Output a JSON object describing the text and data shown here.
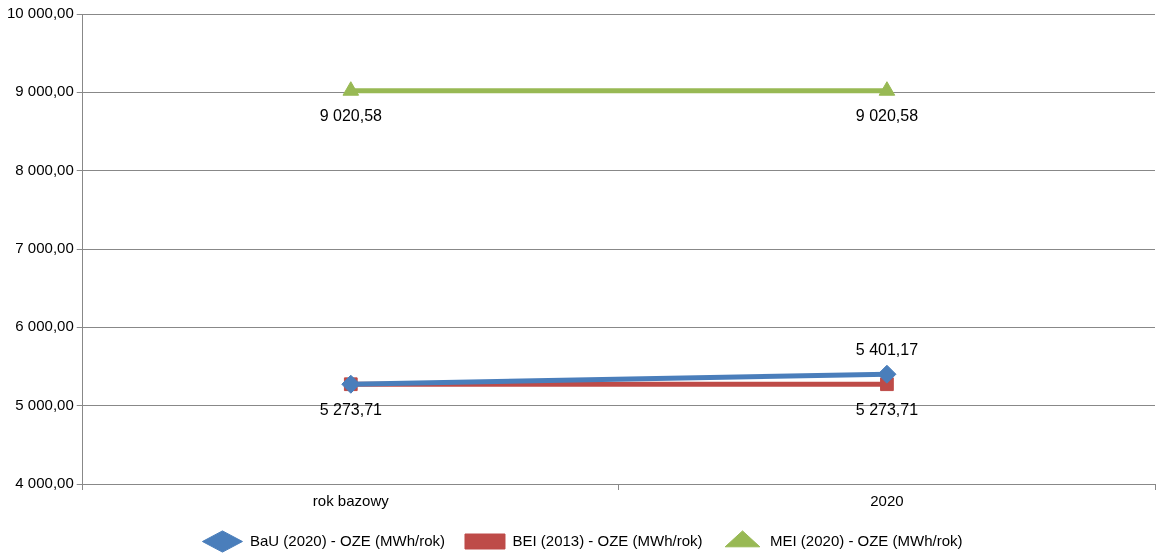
{
  "chart_data": {
    "type": "line",
    "categories": [
      "rok bazowy",
      "2020"
    ],
    "series": [
      {
        "name": "BaU (2020) - OZE (MWh/rok)",
        "color": "#4a7ebb",
        "marker": "diamond",
        "values": [
          5273.71,
          5401.17
        ],
        "value_labels": [
          null,
          "5 401,17"
        ]
      },
      {
        "name": "BEI (2013) - OZE (MWh/rok)",
        "color": "#be4b48",
        "marker": "square",
        "values": [
          5273.71,
          5273.71
        ],
        "value_labels": [
          "5 273,71",
          "5 273,71"
        ]
      },
      {
        "name": "MEI (2020) - OZE (MWh/rok)",
        "color": "#98b954",
        "marker": "triangle",
        "values": [
          9020.58,
          9020.58
        ],
        "value_labels": [
          "9 020,58",
          "9 020,58"
        ]
      }
    ],
    "ylim": [
      4000,
      10000
    ],
    "yticks": [
      {
        "value": 4000,
        "label": "4 000,00"
      },
      {
        "value": 5000,
        "label": "5 000,00"
      },
      {
        "value": 6000,
        "label": "6 000,00"
      },
      {
        "value": 7000,
        "label": "7 000,00"
      },
      {
        "value": 8000,
        "label": "8 000,00"
      },
      {
        "value": 9000,
        "label": "9 000,00"
      },
      {
        "value": 10000,
        "label": "10 000,00"
      }
    ],
    "grid": "y",
    "legend": "bottom",
    "line_style": "solid"
  }
}
